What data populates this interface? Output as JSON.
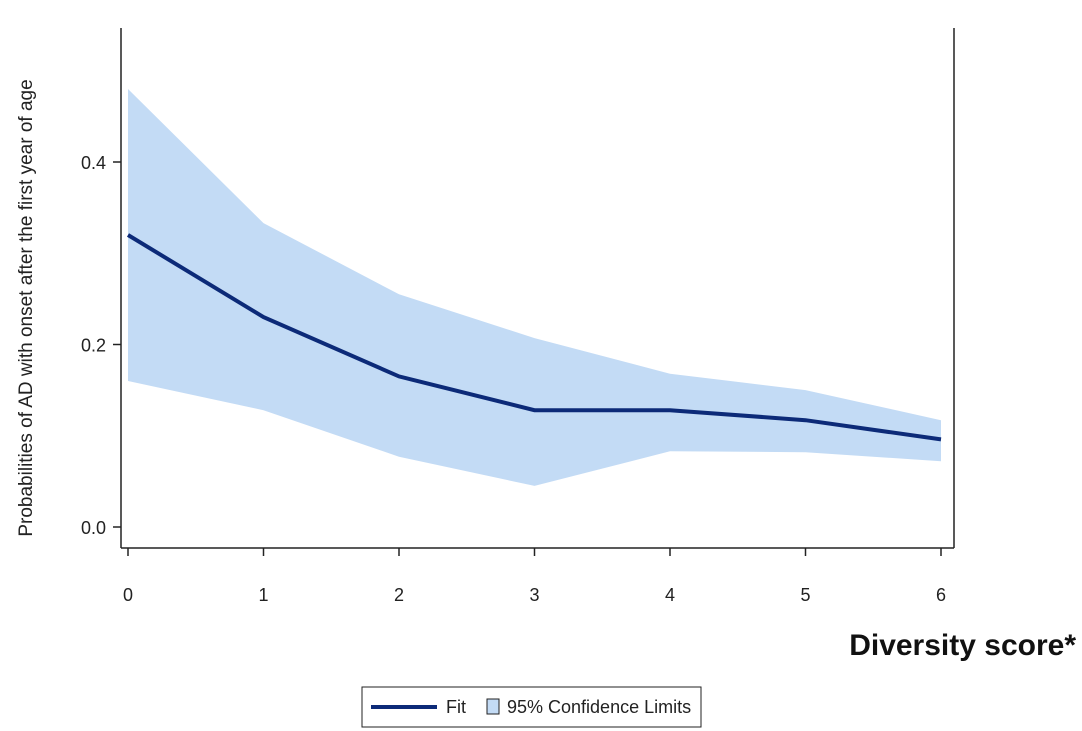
{
  "chart_data": {
    "type": "line",
    "title": "",
    "xlabel": "Diversity score*",
    "ylabel": "Probabilities of AD with onset after the first year of age",
    "xlim": [
      0,
      6
    ],
    "ylim": [
      0,
      0.5
    ],
    "x_ticks": [
      "0",
      "1",
      "2",
      "3",
      "4",
      "5",
      "6"
    ],
    "y_ticks": [
      "0.0",
      "0.2",
      "0.4"
    ],
    "grid": false,
    "legend_position": "bottom",
    "series": [
      {
        "name": "Fit",
        "type": "line",
        "color": "#0c2a78",
        "x": [
          0,
          1,
          2,
          3,
          4,
          5,
          6
        ],
        "y": [
          0.32,
          0.23,
          0.165,
          0.128,
          0.128,
          0.117,
          0.096
        ]
      },
      {
        "name": "95% Confidence Limits",
        "type": "band",
        "color": "#c3dbf5",
        "x": [
          0,
          1,
          2,
          3,
          4,
          5,
          6
        ],
        "lower": [
          0.16,
          0.128,
          0.077,
          0.045,
          0.083,
          0.082,
          0.072
        ],
        "upper": [
          0.48,
          0.333,
          0.255,
          0.207,
          0.168,
          0.15,
          0.117
        ]
      }
    ]
  },
  "legend": {
    "fit_label": "Fit",
    "ci_label": "95% Confidence Limits"
  }
}
